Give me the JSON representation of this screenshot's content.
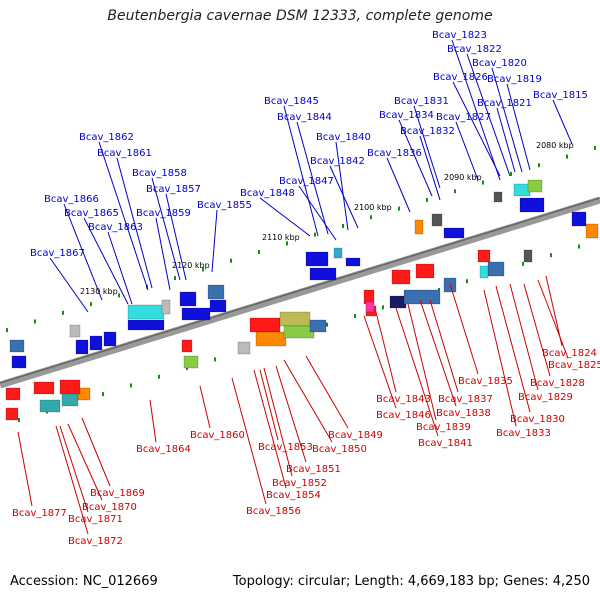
{
  "title": "Beutenbergia cavernae DSM 12333, complete genome",
  "footer": {
    "accession": "Accession: NC_012669",
    "topology": "Topology: circular; Length: 4,669,183 bp; Genes: 4,250"
  },
  "colors": {
    "top_label": "#0000cc",
    "bottom_label": "#cc0000",
    "axis": "#888888",
    "tick": "#1a8a1a"
  },
  "kbp_marks": [
    "2080 kbp",
    "2090 kbp",
    "2100 kbp",
    "2110 kbp",
    "2120 kbp",
    "2130 kbp"
  ],
  "top_labels": [
    "Bcav_1823",
    "Bcav_1822",
    "Bcav_1820",
    "Bcav_1826",
    "Bcav_1819",
    "Bcav_1831",
    "Bcav_1815",
    "Bcav_1821",
    "Bcav_1845",
    "Bcav_1834",
    "Bcav_1827",
    "Bcav_1844",
    "Bcav_1832",
    "Bcav_1840",
    "Bcav_1862",
    "Bcav_1836",
    "Bcav_1861",
    "Bcav_1842",
    "Bcav_1858",
    "Bcav_1847",
    "Bcav_1857",
    "Bcav_1848",
    "Bcav_1866",
    "Bcav_1855",
    "Bcav_1865",
    "Bcav_1859",
    "Bcav_1863",
    "Bcav_1867"
  ],
  "bottom_labels": [
    "Bcav_1824",
    "Bcav_1825",
    "Bcav_1828",
    "Bcav_1835",
    "Bcav_1829",
    "Bcav_1843",
    "Bcav_1837",
    "Bcav_1830",
    "Bcav_1846",
    "Bcav_1838",
    "Bcav_1833",
    "Bcav_1839",
    "Bcav_1860",
    "Bcav_1849",
    "Bcav_1841",
    "Bcav_1853",
    "Bcav_1864",
    "Bcav_1850",
    "Bcav_1851",
    "Bcav_1852",
    "Bcav_1869",
    "Bcav_1854",
    "Bcav_1870",
    "Bcav_1877",
    "Bcav_1856",
    "Bcav_1871",
    "Bcav_1872"
  ]
}
